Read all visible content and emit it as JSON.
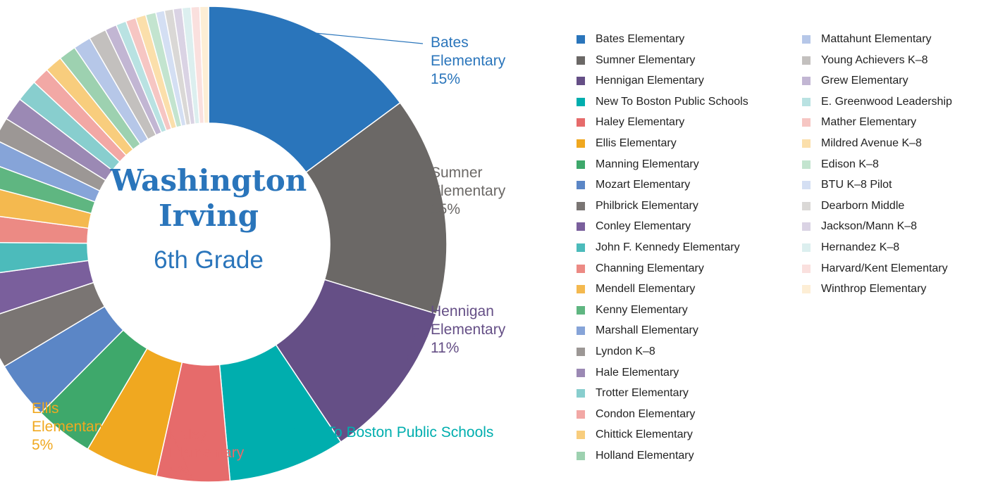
{
  "chart_data": {
    "type": "donut",
    "title": "Washington Irving",
    "subtitle": "6th Grade",
    "categories": [
      "Bates Elementary",
      "Sumner Elementary",
      "Hennigan Elementary",
      "New To Boston Public Schools",
      "Haley Elementary",
      "Ellis Elementary",
      "Manning Elementary",
      "Mozart Elementary",
      "Philbrick Elementary",
      "Conley Elementary",
      "John F. Kennedy Elementary",
      "Channing Elementary",
      "Mendell Elementary",
      "Kenny Elementary",
      "Marshall Elementary",
      "Lyndon K–8",
      "Hale Elementary",
      "Trotter Elementary",
      "Condon Elementary",
      "Chittick Elementary",
      "Holland Elementary",
      "Mattahunt Elementary",
      "Young Achievers K–8",
      "Grew Elementary",
      "E. Greenwood Leadership",
      "Mather Elementary",
      "Mildred Avenue K–8",
      "Edison K–8",
      "BTU K–8 Pilot",
      "Dearborn Middle",
      "Jackson/Mann K–8",
      "Hernandez K–8",
      "Harvard/Kent Elementary",
      "Winthrop Elementary"
    ],
    "values": [
      15,
      15,
      11,
      8,
      5,
      5,
      4,
      4,
      3.5,
      3,
      2.3,
      2,
      2,
      1.6,
      1.6,
      1.6,
      1.6,
      1.5,
      1.2,
      1.2,
      1.2,
      1.2,
      1.2,
      0.8,
      0.7,
      0.7,
      0.7,
      0.7,
      0.6,
      0.6,
      0.6,
      0.6,
      0.6,
      0.6
    ],
    "value_labels": [
      "15%",
      "15%",
      "11%",
      "8%",
      "5%",
      "5%",
      null,
      null,
      null,
      null,
      null,
      null,
      null,
      null,
      null,
      null,
      null,
      null,
      null,
      null,
      null,
      null,
      null,
      null,
      null,
      null,
      null,
      null,
      null,
      null,
      null,
      null,
      null,
      null
    ],
    "colors": [
      "#2a75bb",
      "#6b6866",
      "#654f86",
      "#00aeae",
      "#e66b6b",
      "#f0a820",
      "#3ea86b",
      "#5b86c6",
      "#7a7573",
      "#7a5f9c",
      "#4cbbbb",
      "#ec8a84",
      "#f4b94f",
      "#5fb681",
      "#86a4d8",
      "#9c9795",
      "#9b89b4",
      "#88cece",
      "#f2a8a5",
      "#f8cd7d",
      "#9dd1b0",
      "#b6c7e8",
      "#c3c0be",
      "#c2b6d3",
      "#b9e2e2",
      "#f6c6c3",
      "#fbdfab",
      "#c3e4cf",
      "#d4dff3",
      "#dad8d6",
      "#dad3e4",
      "#dcefef",
      "#fae0de",
      "#fdeed5"
    ]
  }
}
